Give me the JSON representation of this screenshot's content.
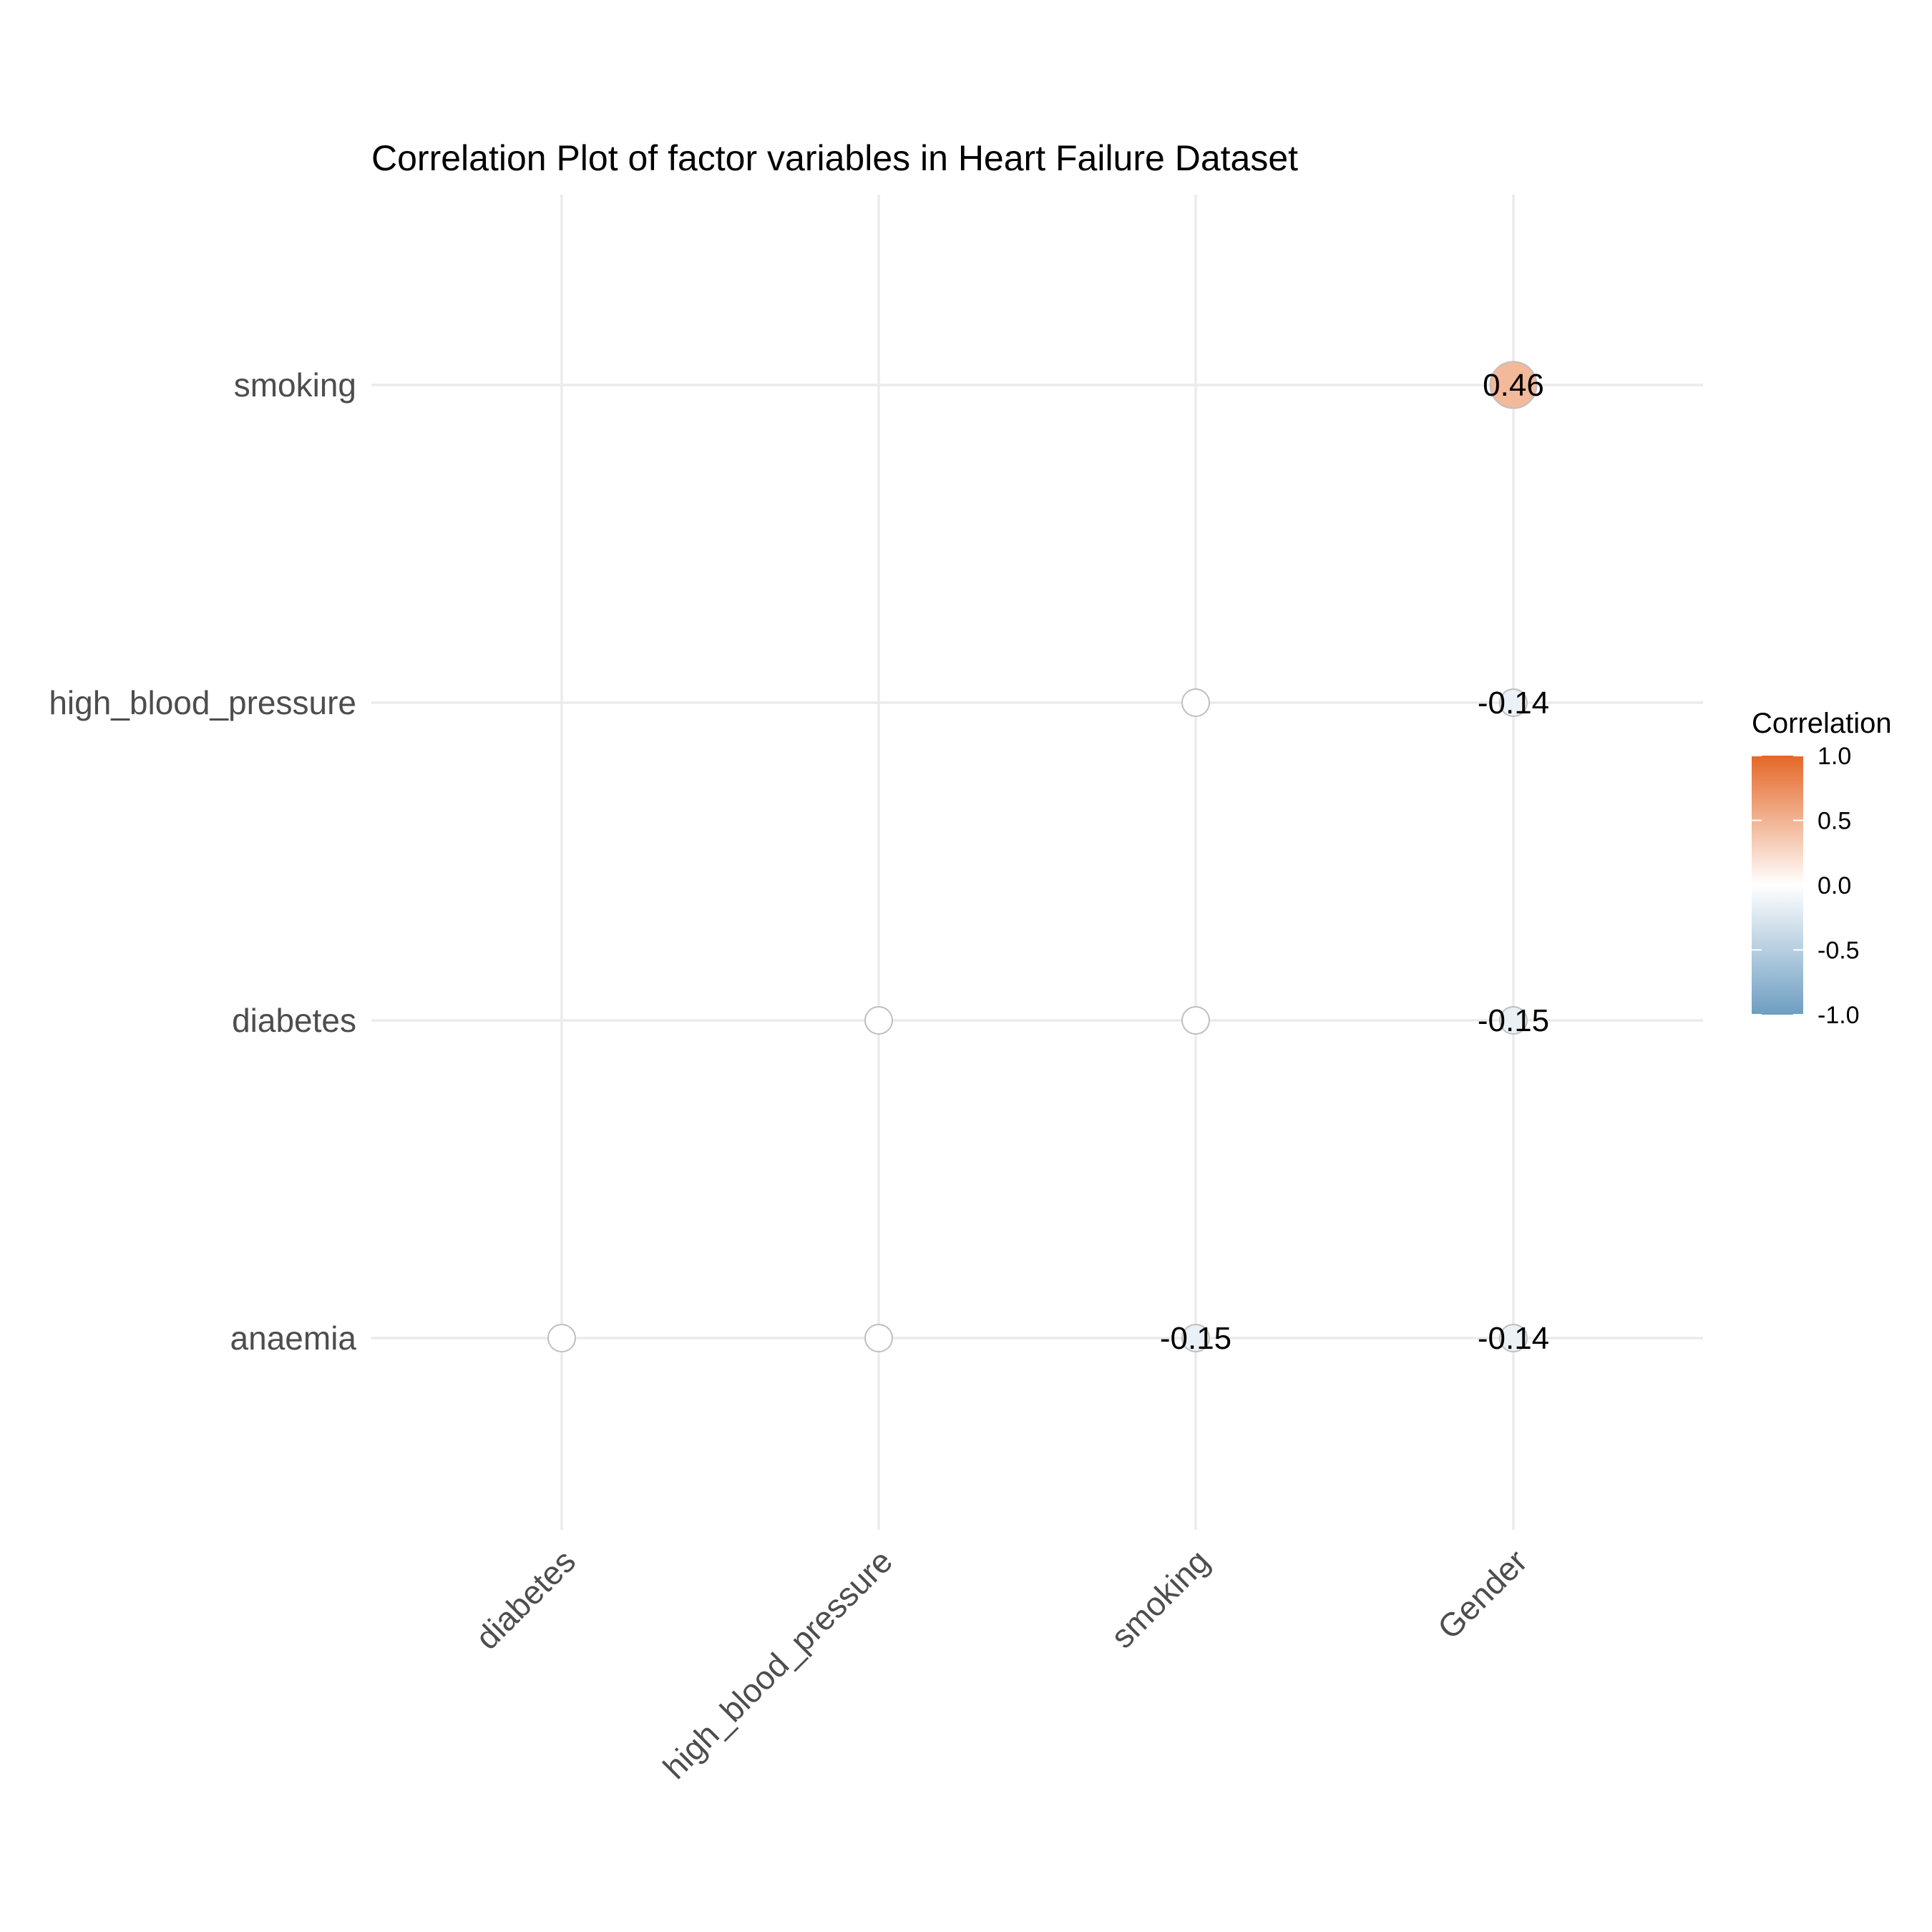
{
  "chart_data": {
    "type": "heatmap",
    "title": "Correlation Plot of factor variables in Heart Failure Dataset",
    "xlabel": "",
    "ylabel": "",
    "x_categories": [
      "diabetes",
      "high_blood_pressure",
      "smoking",
      "Gender"
    ],
    "y_categories": [
      "anaemia",
      "diabetes",
      "high_blood_pressure",
      "smoking"
    ],
    "cells": [
      {
        "x": "diabetes",
        "y": "anaemia",
        "value": null,
        "label": ""
      },
      {
        "x": "high_blood_pressure",
        "y": "anaemia",
        "value": null,
        "label": ""
      },
      {
        "x": "smoking",
        "y": "anaemia",
        "value": -0.15,
        "label": "-0.15"
      },
      {
        "x": "Gender",
        "y": "anaemia",
        "value": -0.14,
        "label": "-0.14"
      },
      {
        "x": "high_blood_pressure",
        "y": "diabetes",
        "value": null,
        "label": ""
      },
      {
        "x": "smoking",
        "y": "diabetes",
        "value": null,
        "label": ""
      },
      {
        "x": "Gender",
        "y": "diabetes",
        "value": -0.15,
        "label": "-0.15"
      },
      {
        "x": "smoking",
        "y": "high_blood_pressure",
        "value": null,
        "label": ""
      },
      {
        "x": "Gender",
        "y": "high_blood_pressure",
        "value": -0.14,
        "label": "-0.14"
      },
      {
        "x": "Gender",
        "y": "smoking",
        "value": 0.46,
        "label": "0.46"
      }
    ],
    "legend": {
      "title": "Correlation",
      "position": "right",
      "range": [
        -1,
        1
      ],
      "ticks": [
        "1.0",
        "0.5",
        "0.0",
        "-0.5",
        "-1.0"
      ],
      "tick_values": [
        1,
        0.5,
        0,
        -0.5,
        -1
      ],
      "colors": {
        "low": "#6d9ec1",
        "mid": "#ffffff",
        "high": "#e46726"
      }
    },
    "grid": true
  }
}
